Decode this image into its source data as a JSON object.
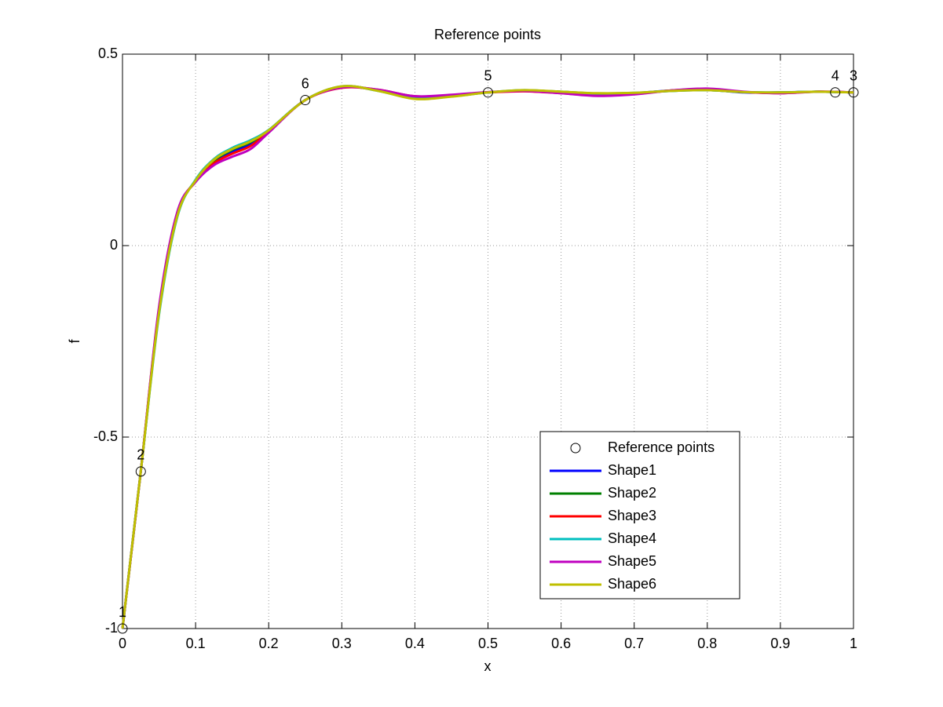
{
  "chart_data": {
    "type": "line",
    "title": "Reference points",
    "xlabel": "x",
    "ylabel": "f",
    "x": [
      0,
      0.025,
      0.05,
      0.075,
      0.1,
      0.125,
      0.15,
      0.175,
      0.2,
      0.25,
      0.3,
      0.35,
      0.4,
      0.45,
      0.5,
      0.55,
      0.6,
      0.65,
      0.7,
      0.75,
      0.8,
      0.85,
      0.9,
      0.95,
      1
    ],
    "series": [
      {
        "name": "Shape1",
        "color": "#0000ff",
        "values": [
          -1,
          -0.59,
          -0.17,
          0.08,
          0.17,
          0.22,
          0.245,
          0.265,
          0.3,
          0.38,
          0.415,
          0.405,
          0.388,
          0.392,
          0.4,
          0.405,
          0.4,
          0.395,
          0.398,
          0.405,
          0.407,
          0.4,
          0.4,
          0.402,
          0.4
        ]
      },
      {
        "name": "Shape2",
        "color": "#008000",
        "values": [
          -1,
          -0.59,
          -0.17,
          0.08,
          0.17,
          0.222,
          0.25,
          0.27,
          0.3,
          0.38,
          0.415,
          0.405,
          0.385,
          0.39,
          0.4,
          0.405,
          0.402,
          0.397,
          0.398,
          0.404,
          0.406,
          0.401,
          0.4,
          0.402,
          0.4
        ]
      },
      {
        "name": "Shape3",
        "color": "#ff0000",
        "values": [
          -1,
          -0.59,
          -0.165,
          0.085,
          0.168,
          0.215,
          0.24,
          0.26,
          0.298,
          0.38,
          0.412,
          0.407,
          0.39,
          0.393,
          0.4,
          0.403,
          0.398,
          0.392,
          0.396,
          0.405,
          0.409,
          0.401,
          0.398,
          0.402,
          0.4
        ]
      },
      {
        "name": "Shape4",
        "color": "#00bfbf",
        "values": [
          -1,
          -0.59,
          -0.18,
          0.075,
          0.172,
          0.226,
          0.255,
          0.275,
          0.302,
          0.38,
          0.416,
          0.404,
          0.384,
          0.39,
          0.4,
          0.406,
          0.401,
          0.397,
          0.399,
          0.404,
          0.406,
          0.401,
          0.4,
          0.402,
          0.4
        ]
      },
      {
        "name": "Shape5",
        "color": "#bf00bf",
        "values": [
          -1,
          -0.59,
          -0.16,
          0.088,
          0.166,
          0.21,
          0.232,
          0.252,
          0.295,
          0.38,
          0.413,
          0.407,
          0.39,
          0.394,
          0.401,
          0.404,
          0.398,
          0.391,
          0.395,
          0.405,
          0.41,
          0.402,
          0.398,
          0.402,
          0.4
        ]
      },
      {
        "name": "Shape6",
        "color": "#bfbf00",
        "values": [
          -1,
          -0.59,
          -0.175,
          0.078,
          0.17,
          0.224,
          0.252,
          0.272,
          0.301,
          0.38,
          0.416,
          0.404,
          0.383,
          0.389,
          0.4,
          0.406,
          0.402,
          0.398,
          0.399,
          0.404,
          0.406,
          0.401,
          0.4,
          0.402,
          0.4
        ]
      }
    ],
    "reference_points": {
      "name": "Reference points",
      "x": [
        0,
        0.025,
        1,
        0.975,
        0.5,
        0.25
      ],
      "values": [
        -1,
        -0.59,
        0.4,
        0.4,
        0.4,
        0.38
      ],
      "labels": [
        "1",
        "2",
        "3",
        "4",
        "5",
        "6"
      ]
    },
    "xlim": [
      0,
      1
    ],
    "ylim": [
      -1,
      0.5
    ],
    "xticks": [
      0,
      0.1,
      0.2,
      0.3,
      0.4,
      0.5,
      0.6,
      0.7,
      0.8,
      0.9,
      1
    ],
    "yticks": [
      -1,
      -0.5,
      0,
      0.5
    ],
    "grid": true,
    "legend": "lower-right"
  }
}
